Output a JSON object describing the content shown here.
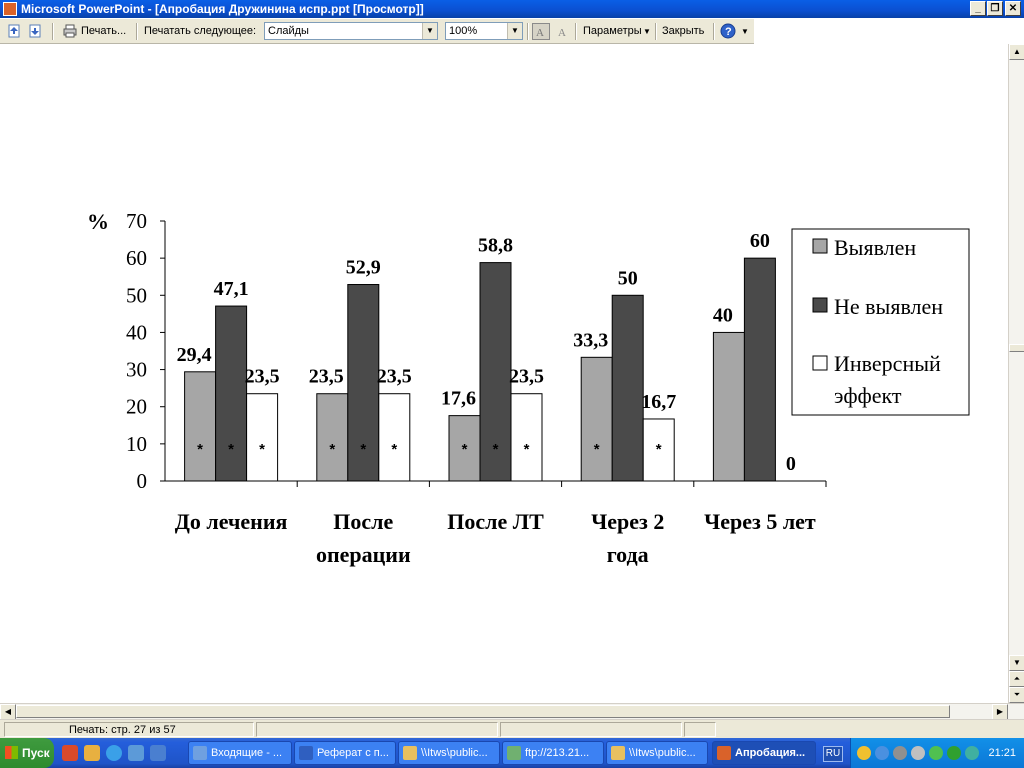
{
  "window": {
    "title": "Microsoft PowerPoint - [Апробация Дружинина испр.ppt [Просмотр]]"
  },
  "toolbar": {
    "print_label": "Печать...",
    "print_what_label": "Печатать следующее:",
    "print_what_value": "Слайды",
    "zoom_value": "100%",
    "options_label": "Параметры",
    "close_label": "Закрыть"
  },
  "chart_data": {
    "type": "bar",
    "ylabel": "%",
    "ylim": [
      0,
      70
    ],
    "yticks": [
      "0",
      "10",
      "20",
      "30",
      "40",
      "50",
      "60",
      "70"
    ],
    "categories": [
      "До лечения",
      "После операции",
      "После ЛТ",
      "Через 2 года",
      "Через 5 лет"
    ],
    "category_lines": [
      [
        "До лечения"
      ],
      [
        "После",
        "операции"
      ],
      [
        "После ЛТ"
      ],
      [
        "Через 2",
        "года"
      ],
      [
        "Через 5 лет"
      ]
    ],
    "series": [
      {
        "name": "Выявлен",
        "values": [
          29.4,
          23.5,
          17.6,
          33.3,
          40
        ],
        "labels": [
          "29,4",
          "23,5",
          "17,6",
          "33,3",
          "40"
        ],
        "color": "#a6a6a6"
      },
      {
        "name": "Не выявлен",
        "values": [
          47.1,
          52.9,
          58.8,
          50,
          60
        ],
        "labels": [
          "47,1",
          "52,9",
          "58,8",
          "50",
          "60"
        ],
        "color": "#4a4a4a"
      },
      {
        "name": "Инверсный эффект",
        "name_lines": [
          "Инверсный",
          "эффект"
        ],
        "values": [
          23.5,
          23.5,
          23.5,
          16.7,
          0
        ],
        "labels": [
          "23,5",
          "23,5",
          "23,5",
          "16,7",
          "0"
        ],
        "color": "#ffffff"
      }
    ],
    "significance_marker": "*",
    "markers": [
      [
        true,
        true,
        true
      ],
      [
        true,
        true,
        true
      ],
      [
        true,
        true,
        true
      ],
      [
        true,
        false,
        true
      ],
      [
        false,
        false,
        false
      ]
    ],
    "legend_position": "right",
    "grid": false
  },
  "statusbar": {
    "page_text": "Печать: стр. 27 из 57"
  },
  "taskbar": {
    "start_label": "Пуск",
    "tasks": [
      {
        "label": "Входящие - ..."
      },
      {
        "label": "Реферат с п..."
      },
      {
        "label": "\\\\Itws\\public..."
      },
      {
        "label": "ftp://213.21..."
      },
      {
        "label": "\\\\Itws\\public..."
      },
      {
        "label": "Апробация..."
      }
    ],
    "language": "RU",
    "clock": "21:21"
  }
}
